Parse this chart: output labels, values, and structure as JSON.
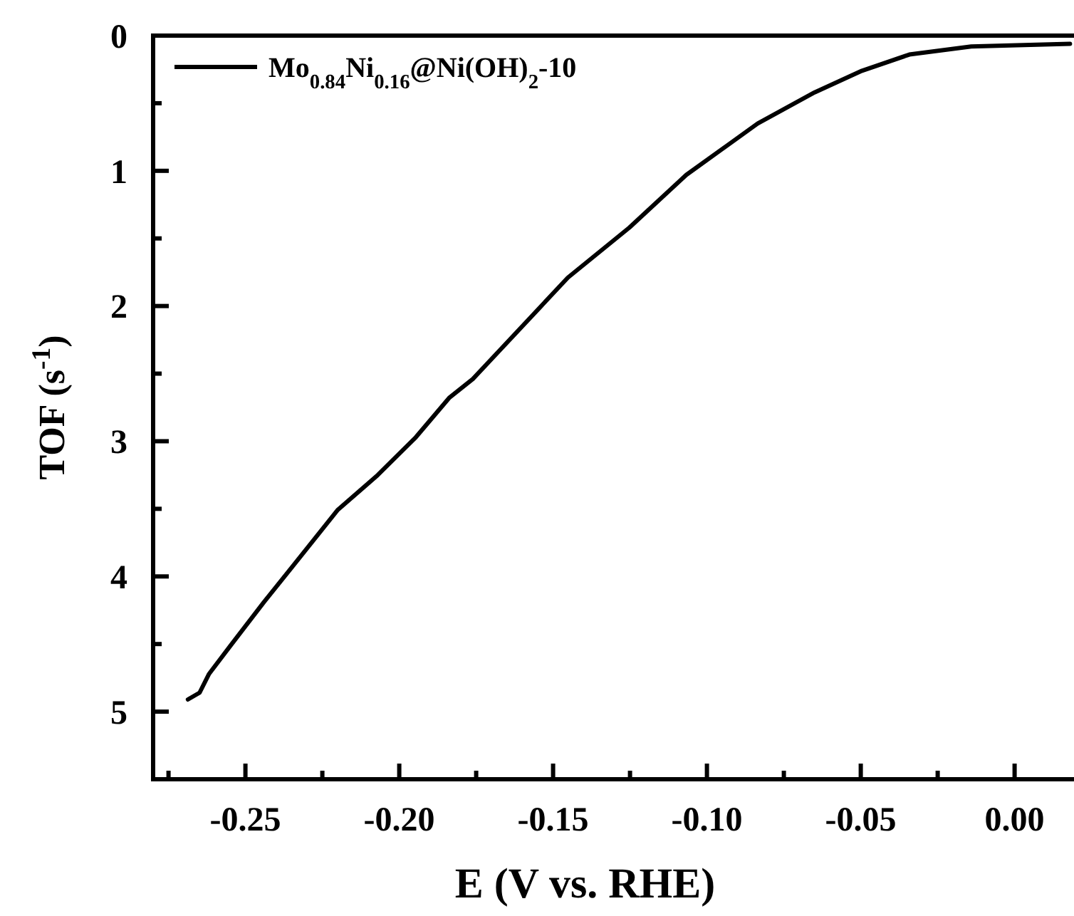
{
  "chart_data": {
    "type": "line",
    "xlabel": "E (V vs. RHE)",
    "ylabel": "TOF (s$^{-1}$)",
    "xlim": [
      -0.28,
      0.02
    ],
    "ylim": [
      5.5,
      0
    ],
    "xticks": [
      {
        "value": -0.275,
        "label": null
      },
      -0.25,
      {
        "value": -0.225,
        "label": null
      },
      {
        "value": -0.2,
        "label": "-0.20"
      },
      {
        "value": -0.175,
        "label": null
      },
      -0.15,
      {
        "value": -0.125,
        "label": null
      },
      {
        "value": -0.1,
        "label": "-0.10"
      },
      {
        "value": -0.075,
        "label": null
      },
      -0.05,
      {
        "value": -0.025,
        "label": null
      },
      {
        "value": 0,
        "label": "0.00"
      }
    ],
    "yticks": [
      0,
      {
        "value": 0.5,
        "label": null
      },
      1,
      {
        "value": 1.5,
        "label": null
      },
      2,
      {
        "value": 2.5,
        "label": null
      },
      3,
      {
        "value": 3.5,
        "label": null
      },
      4,
      {
        "value": 4.5,
        "label": null
      },
      5
    ],
    "legend": "top left",
    "grid": false,
    "line_style": "solid",
    "marker": "none",
    "series": [
      {
        "name": "Mo$_{0.84}$Ni$_{0.16}$@Ni(OH)$_{2}$-10",
        "color": "#000000",
        "x": [
          -0.2687,
          -0.2649,
          -0.2618,
          -0.2548,
          -0.244,
          -0.2348,
          -0.2201,
          -0.207,
          -0.1946,
          -0.1838,
          -0.1761,
          -0.1452,
          -0.1252,
          -0.1067,
          -0.0835,
          -0.065,
          -0.0496,
          -0.0342,
          -0.0141,
          0.018
        ],
        "values": [
          4.91,
          4.86,
          4.72,
          4.51,
          4.19,
          3.93,
          3.51,
          3.25,
          2.97,
          2.68,
          2.54,
          1.79,
          1.42,
          1.03,
          0.65,
          0.42,
          0.26,
          0.14,
          0.08,
          0.06
        ]
      }
    ]
  }
}
